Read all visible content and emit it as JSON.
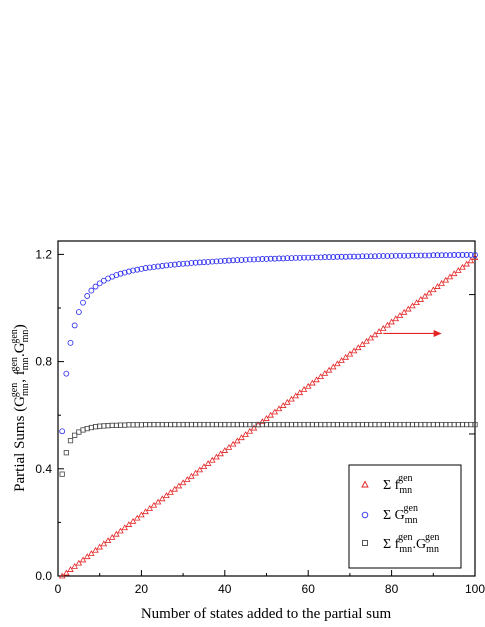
{
  "chart_data": {
    "type": "scatter",
    "xlabel": "Number of states added to the partial sum",
    "ylabel": {
      "prefix": "Partial Sums (",
      "g": "G",
      "f": "f",
      "sup": "gen",
      "sub": "mn",
      "suffix": ")"
    },
    "xlim": [
      0,
      100
    ],
    "ylim": [
      0.0,
      1.25
    ],
    "x_ticks": [
      0,
      20,
      40,
      60,
      80,
      100
    ],
    "y_ticks": [
      0.0,
      0.4,
      0.8,
      1.2
    ],
    "x_tick_labels": [
      "0",
      "20",
      "40",
      "60",
      "80",
      "100"
    ],
    "y_tick_labels": [
      "0.0",
      "0.4",
      "0.8",
      "1.2"
    ],
    "right_axis_tick_marks": [
      1.05,
      0.53,
      0.0
    ],
    "grid": false,
    "legend_position": "bottom-right",
    "series": [
      {
        "symbol": "Σ f",
        "sup": "gen",
        "sub": "mn",
        "marker": "triangle",
        "color": "#e32222",
        "x": [
          1,
          2,
          3,
          4,
          5,
          6,
          7,
          8,
          9,
          10,
          11,
          12,
          13,
          14,
          15,
          16,
          17,
          18,
          19,
          20,
          21,
          22,
          23,
          24,
          25,
          26,
          27,
          28,
          29,
          30,
          31,
          32,
          33,
          34,
          35,
          36,
          37,
          38,
          39,
          40,
          41,
          42,
          43,
          44,
          45,
          46,
          47,
          48,
          49,
          50,
          51,
          52,
          53,
          54,
          55,
          56,
          57,
          58,
          59,
          60,
          61,
          62,
          63,
          64,
          65,
          66,
          67,
          68,
          69,
          70,
          71,
          72,
          73,
          74,
          75,
          76,
          77,
          78,
          79,
          80,
          81,
          82,
          83,
          84,
          85,
          86,
          87,
          88,
          89,
          90,
          91,
          92,
          93,
          94,
          95,
          96,
          97,
          98,
          99,
          100
        ],
        "y": [
          0.0,
          0.011,
          0.024,
          0.036,
          0.048,
          0.06,
          0.072,
          0.084,
          0.096,
          0.108,
          0.12,
          0.132,
          0.144,
          0.156,
          0.168,
          0.18,
          0.192,
          0.204,
          0.216,
          0.228,
          0.24,
          0.252,
          0.264,
          0.276,
          0.288,
          0.3,
          0.312,
          0.324,
          0.336,
          0.348,
          0.36,
          0.372,
          0.384,
          0.396,
          0.408,
          0.42,
          0.432,
          0.444,
          0.456,
          0.468,
          0.48,
          0.492,
          0.504,
          0.516,
          0.528,
          0.54,
          0.552,
          0.564,
          0.576,
          0.588,
          0.6,
          0.612,
          0.624,
          0.636,
          0.648,
          0.66,
          0.672,
          0.684,
          0.696,
          0.708,
          0.72,
          0.732,
          0.744,
          0.756,
          0.768,
          0.78,
          0.792,
          0.804,
          0.816,
          0.828,
          0.84,
          0.852,
          0.864,
          0.876,
          0.888,
          0.9,
          0.912,
          0.924,
          0.936,
          0.948,
          0.96,
          0.972,
          0.984,
          0.996,
          1.008,
          1.02,
          1.032,
          1.044,
          1.056,
          1.068,
          1.08,
          1.092,
          1.104,
          1.116,
          1.128,
          1.14,
          1.152,
          1.164,
          1.176,
          1.188
        ]
      },
      {
        "symbol": "Σ G",
        "sup": "gen",
        "sub": "mn",
        "marker": "circle",
        "color": "#2b2bf0",
        "x": [
          1,
          2,
          3,
          4,
          5,
          6,
          7,
          8,
          9,
          10,
          11,
          12,
          13,
          14,
          15,
          16,
          17,
          18,
          19,
          20,
          21,
          22,
          23,
          24,
          25,
          26,
          27,
          28,
          29,
          30,
          31,
          32,
          33,
          34,
          35,
          36,
          37,
          38,
          39,
          40,
          41,
          42,
          43,
          44,
          45,
          46,
          47,
          48,
          49,
          50,
          51,
          52,
          53,
          54,
          55,
          56,
          57,
          58,
          59,
          60,
          61,
          62,
          63,
          64,
          65,
          66,
          67,
          68,
          69,
          70,
          71,
          72,
          73,
          74,
          75,
          76,
          77,
          78,
          79,
          80,
          81,
          82,
          83,
          84,
          85,
          86,
          87,
          88,
          89,
          90,
          91,
          92,
          93,
          94,
          95,
          96,
          97,
          98,
          99,
          100
        ],
        "y": [
          0.54,
          0.755,
          0.87,
          0.935,
          0.985,
          1.02,
          1.045,
          1.065,
          1.08,
          1.092,
          1.102,
          1.11,
          1.117,
          1.123,
          1.128,
          1.132,
          1.136,
          1.14,
          1.143,
          1.146,
          1.149,
          1.151,
          1.153,
          1.155,
          1.157,
          1.159,
          1.161,
          1.162,
          1.164,
          1.165,
          1.166,
          1.168,
          1.169,
          1.17,
          1.171,
          1.172,
          1.173,
          1.174,
          1.175,
          1.176,
          1.177,
          1.178,
          1.179,
          1.179,
          1.18,
          1.181,
          1.181,
          1.182,
          1.183,
          1.183,
          1.184,
          1.184,
          1.185,
          1.185,
          1.186,
          1.186,
          1.187,
          1.187,
          1.188,
          1.188,
          1.188,
          1.189,
          1.189,
          1.19,
          1.19,
          1.19,
          1.191,
          1.191,
          1.191,
          1.192,
          1.192,
          1.192,
          1.193,
          1.193,
          1.193,
          1.193,
          1.194,
          1.194,
          1.194,
          1.194,
          1.195,
          1.195,
          1.195,
          1.195,
          1.196,
          1.196,
          1.196,
          1.196,
          1.196,
          1.197,
          1.197,
          1.197,
          1.197,
          1.197,
          1.198,
          1.198,
          1.198,
          1.198,
          1.198,
          1.198
        ]
      },
      {
        "symbol": "Σ f",
        "sup": "gen",
        "sub": "mn",
        "symbol2": ".G",
        "marker": "square",
        "color": "#444444",
        "x": [
          1,
          2,
          3,
          4,
          5,
          6,
          7,
          8,
          9,
          10,
          11,
          12,
          13,
          14,
          15,
          16,
          17,
          18,
          19,
          20,
          21,
          22,
          23,
          24,
          25,
          26,
          27,
          28,
          29,
          30,
          31,
          32,
          33,
          34,
          35,
          36,
          37,
          38,
          39,
          40,
          41,
          42,
          43,
          44,
          45,
          46,
          47,
          48,
          49,
          50,
          51,
          52,
          53,
          54,
          55,
          56,
          57,
          58,
          59,
          60,
          61,
          62,
          63,
          64,
          65,
          66,
          67,
          68,
          69,
          70,
          71,
          72,
          73,
          74,
          75,
          76,
          77,
          78,
          79,
          80,
          81,
          82,
          83,
          84,
          85,
          86,
          87,
          88,
          89,
          90,
          91,
          92,
          93,
          94,
          95,
          96,
          97,
          98,
          99,
          100
        ],
        "y": [
          0.38,
          0.46,
          0.505,
          0.525,
          0.537,
          0.545,
          0.55,
          0.554,
          0.557,
          0.559,
          0.56,
          0.561,
          0.562,
          0.562,
          0.563,
          0.563,
          0.564,
          0.564,
          0.564,
          0.564,
          0.565,
          0.565,
          0.565,
          0.565,
          0.565,
          0.565,
          0.565,
          0.565,
          0.565,
          0.565,
          0.565,
          0.565,
          0.565,
          0.565,
          0.565,
          0.565,
          0.565,
          0.565,
          0.565,
          0.565,
          0.565,
          0.565,
          0.565,
          0.565,
          0.565,
          0.565,
          0.565,
          0.565,
          0.565,
          0.565,
          0.565,
          0.565,
          0.565,
          0.565,
          0.565,
          0.565,
          0.565,
          0.565,
          0.565,
          0.565,
          0.565,
          0.565,
          0.565,
          0.565,
          0.565,
          0.565,
          0.565,
          0.565,
          0.565,
          0.565,
          0.565,
          0.565,
          0.565,
          0.565,
          0.565,
          0.565,
          0.565,
          0.565,
          0.565,
          0.565,
          0.565,
          0.565,
          0.565,
          0.565,
          0.565,
          0.565,
          0.565,
          0.565,
          0.565,
          0.565,
          0.565,
          0.565,
          0.565,
          0.565,
          0.565,
          0.565,
          0.565,
          0.565,
          0.565,
          0.565
        ]
      }
    ],
    "annotations": [
      {
        "type": "arrow",
        "from": [
          78,
          0.905
        ],
        "to": [
          92,
          0.905
        ],
        "color": "#e32222"
      }
    ]
  }
}
